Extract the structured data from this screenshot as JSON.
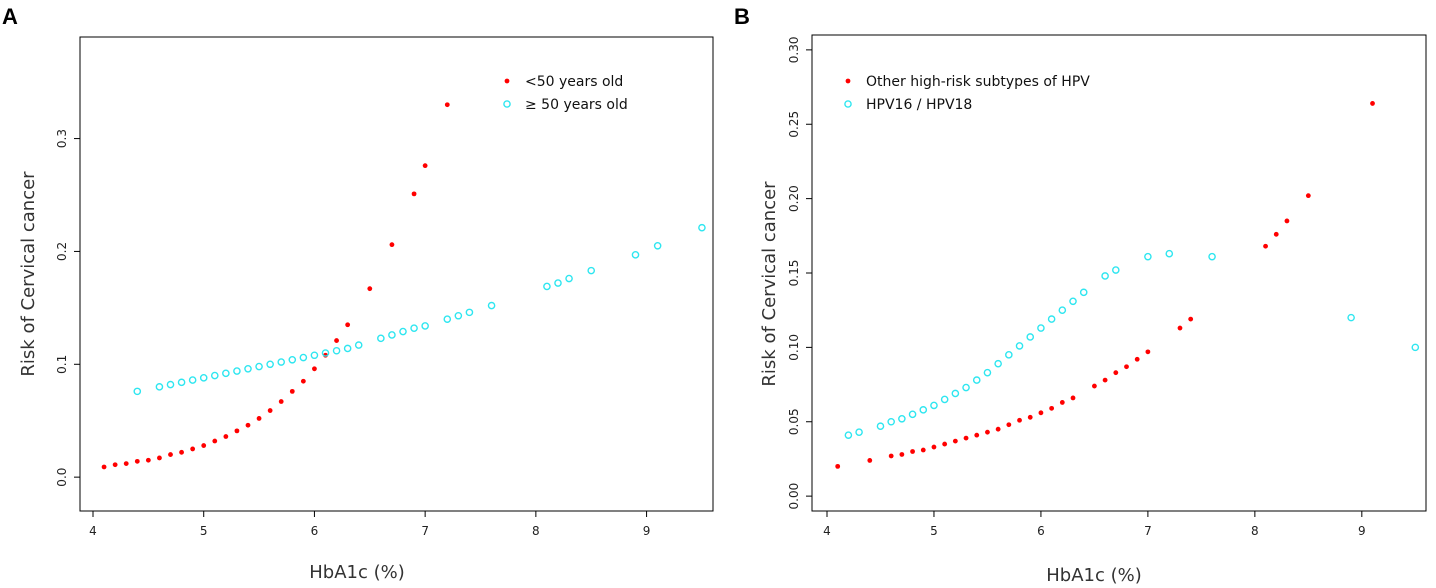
{
  "chart_data": [
    {
      "type": "scatter",
      "panel": "A",
      "xlabel": "HbA1c (%)",
      "ylabel": "Risk of  Cervical cancer",
      "xlim": [
        4,
        9.6
      ],
      "ylim": [
        -0.03,
        0.39
      ],
      "xticks": [
        4,
        5,
        6,
        7,
        8,
        9
      ],
      "yticks": [
        0.0,
        0.1,
        0.2,
        0.3
      ],
      "ytick_labels": [
        "0.0",
        "0.1",
        "0.2",
        "0.3"
      ],
      "legend_position": "top-right",
      "series": [
        {
          "name": "<50 years old",
          "marker": "filled-dot",
          "color": "#ff0000",
          "x": [
            4.1,
            4.2,
            4.3,
            4.4,
            4.5,
            4.6,
            4.7,
            4.8,
            4.9,
            5.0,
            5.1,
            5.2,
            5.3,
            5.4,
            5.5,
            5.6,
            5.7,
            5.8,
            5.9,
            6.0,
            6.1,
            6.2,
            6.3,
            6.5,
            6.7,
            6.9,
            7.0,
            7.2
          ],
          "y": [
            0.009,
            0.011,
            0.012,
            0.014,
            0.015,
            0.017,
            0.02,
            0.022,
            0.025,
            0.028,
            0.032,
            0.036,
            0.041,
            0.046,
            0.052,
            0.059,
            0.067,
            0.076,
            0.085,
            0.096,
            0.108,
            0.121,
            0.135,
            0.167,
            0.206,
            0.251,
            0.276,
            0.33
          ]
        },
        {
          "name": "≥ 50 years old",
          "marker": "open-circle",
          "color": "#2ee6f0",
          "x": [
            4.4,
            4.6,
            4.7,
            4.8,
            4.9,
            5.0,
            5.1,
            5.2,
            5.3,
            5.4,
            5.5,
            5.6,
            5.7,
            5.8,
            5.9,
            6.0,
            6.1,
            6.2,
            6.3,
            6.4,
            6.6,
            6.7,
            6.8,
            6.9,
            7.0,
            7.2,
            7.3,
            7.4,
            7.6,
            8.1,
            8.2,
            8.3,
            8.5,
            8.9,
            9.1,
            9.5
          ],
          "y": [
            0.076,
            0.08,
            0.082,
            0.084,
            0.086,
            0.088,
            0.09,
            0.092,
            0.094,
            0.096,
            0.098,
            0.1,
            0.102,
            0.104,
            0.106,
            0.108,
            0.11,
            0.112,
            0.114,
            0.117,
            0.123,
            0.126,
            0.129,
            0.132,
            0.134,
            0.14,
            0.143,
            0.146,
            0.152,
            0.169,
            0.172,
            0.176,
            0.183,
            0.197,
            0.205,
            0.221
          ]
        }
      ]
    },
    {
      "type": "scatter",
      "panel": "B",
      "xlabel": "HbA1c (%)",
      "ylabel": "Risk of  Cervical cancer",
      "xlim": [
        4,
        9.6
      ],
      "ylim": [
        -0.01,
        0.31
      ],
      "xticks": [
        4,
        5,
        6,
        7,
        8,
        9
      ],
      "yticks": [
        0.0,
        0.05,
        0.1,
        0.15,
        0.2,
        0.25,
        0.3
      ],
      "ytick_labels": [
        "0.00",
        "0.05",
        "0.10",
        "0.15",
        "0.20",
        "0.25",
        "0.30"
      ],
      "legend_position": "top-left",
      "series": [
        {
          "name": "Other high-risk subtypes of HPV",
          "marker": "filled-dot",
          "color": "#ff0000",
          "x": [
            4.1,
            4.4,
            4.6,
            4.7,
            4.8,
            4.9,
            5.0,
            5.1,
            5.2,
            5.3,
            5.4,
            5.5,
            5.6,
            5.7,
            5.8,
            5.9,
            6.0,
            6.1,
            6.2,
            6.3,
            6.5,
            6.6,
            6.7,
            6.8,
            6.9,
            7.0,
            7.3,
            7.4,
            8.1,
            8.2,
            8.3,
            8.5,
            9.1
          ],
          "y": [
            0.02,
            0.024,
            0.027,
            0.028,
            0.03,
            0.031,
            0.033,
            0.035,
            0.037,
            0.039,
            0.041,
            0.043,
            0.045,
            0.048,
            0.051,
            0.053,
            0.056,
            0.059,
            0.063,
            0.066,
            0.074,
            0.078,
            0.083,
            0.087,
            0.092,
            0.097,
            0.113,
            0.119,
            0.168,
            0.176,
            0.185,
            0.202,
            0.264
          ]
        },
        {
          "name": "HPV16 / HPV18",
          "marker": "open-circle",
          "color": "#2ee6f0",
          "x": [
            4.2,
            4.3,
            4.5,
            4.6,
            4.7,
            4.8,
            4.9,
            5.0,
            5.1,
            5.2,
            5.3,
            5.4,
            5.5,
            5.6,
            5.7,
            5.8,
            5.9,
            6.0,
            6.1,
            6.2,
            6.3,
            6.4,
            6.6,
            6.7,
            7.0,
            7.2,
            7.6,
            8.9,
            9.5
          ],
          "y": [
            0.041,
            0.043,
            0.047,
            0.05,
            0.052,
            0.055,
            0.058,
            0.061,
            0.065,
            0.069,
            0.073,
            0.078,
            0.083,
            0.089,
            0.095,
            0.101,
            0.107,
            0.113,
            0.119,
            0.125,
            0.131,
            0.137,
            0.148,
            0.152,
            0.161,
            0.163,
            0.161,
            0.12,
            0.1
          ]
        }
      ]
    }
  ]
}
